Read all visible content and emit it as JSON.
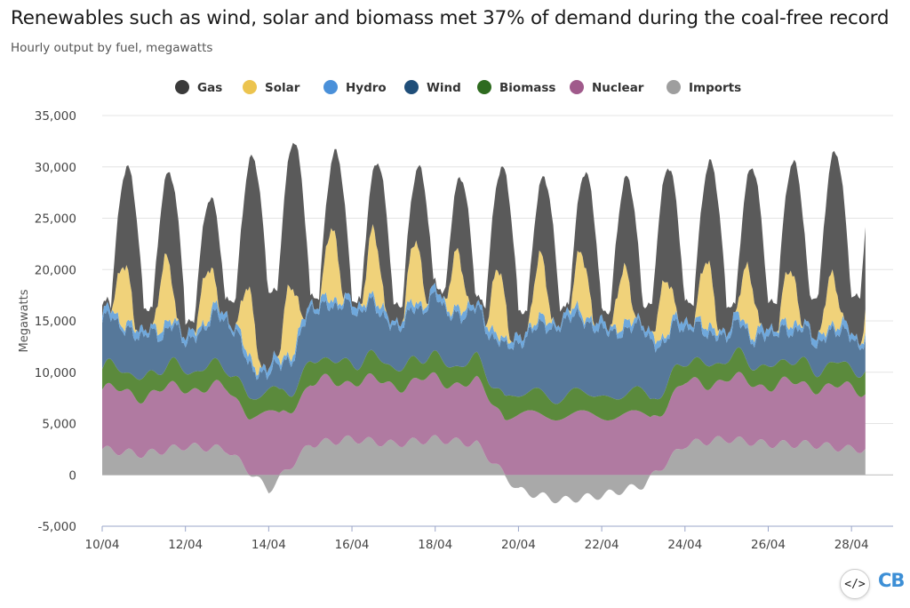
{
  "chart_data": {
    "type": "area",
    "stacked": true,
    "title": "Renewables such as wind, solar and biomass met 37% of demand during the coal-free record",
    "subtitle": "Hourly output by fuel, megawatts",
    "ylabel": "Megawatts",
    "xlabel": "",
    "ylim": [
      -5000,
      35000
    ],
    "yticks": [
      -5000,
      0,
      5000,
      10000,
      15000,
      20000,
      25000,
      30000,
      35000
    ],
    "ytick_labels": [
      "-5,000",
      "0",
      "5,000",
      "10,000",
      "15,000",
      "20,000",
      "25,000",
      "30,000",
      "35,000"
    ],
    "xlim_days": [
      "10/04",
      "28/04"
    ],
    "xtick_labels": [
      "10/04",
      "12/04",
      "14/04",
      "16/04",
      "18/04",
      "20/04",
      "22/04",
      "24/04",
      "26/04",
      "28/04"
    ],
    "xtick_days": [
      10,
      12,
      14,
      16,
      18,
      20,
      22,
      24,
      26,
      28
    ],
    "x_end_day": 28.35,
    "grid": "horizontal",
    "legend_position": "top",
    "stack_order_bottom_to_top": [
      "Imports",
      "Nuclear",
      "Biomass",
      "Wind",
      "Hydro",
      "Solar",
      "Gas"
    ],
    "series": [
      {
        "name": "Gas",
        "color": "#5a5a5a",
        "total_daily_peak": [
          30000,
          29500,
          27000,
          31000,
          32500,
          31500,
          30500,
          30000,
          29000,
          30000,
          29000,
          29500,
          29000,
          30000,
          30500,
          30000,
          30500,
          31500
        ]
      },
      {
        "name": "Solar",
        "color": "#f0d27a",
        "daily_peak": [
          6000,
          6500,
          5000,
          6500,
          7000,
          7000,
          6500,
          6000,
          5500,
          6500,
          6000,
          6000,
          5500,
          5500,
          6500,
          6000,
          5500,
          5000
        ]
      },
      {
        "name": "Hydro",
        "color": "#6fa8dc",
        "approx": 600
      },
      {
        "name": "Wind",
        "color": "#56789a",
        "daily_level": [
          4500,
          4000,
          3000,
          5000,
          1500,
          5000,
          5500,
          4000,
          5500,
          4500,
          5000,
          7500,
          6500,
          6000,
          3500,
          2500,
          3000,
          3000,
          3000
        ]
      },
      {
        "name": "Biomass",
        "color": "#5b8a3c",
        "approx": 2000
      },
      {
        "name": "Nuclear",
        "color": "#b07aa1",
        "approx": 5800
      },
      {
        "name": "Imports",
        "color": "#a9a9a9",
        "daily_level": [
          2500,
          2000,
          2800,
          2500,
          -1500,
          3000,
          3500,
          3000,
          3500,
          3000,
          -1500,
          -2500,
          -2000,
          -1000,
          3000,
          3500,
          3000,
          3000,
          2500
        ]
      }
    ]
  },
  "legend": [
    {
      "label": "Gas",
      "color": "#3a3a3a"
    },
    {
      "label": "Solar",
      "color": "#ecc44f"
    },
    {
      "label": "Hydro",
      "color": "#4a90d9"
    },
    {
      "label": "Wind",
      "color": "#1f4e79"
    },
    {
      "label": "Biomass",
      "color": "#2e6b1f"
    },
    {
      "label": "Nuclear",
      "color": "#a05a8b"
    },
    {
      "label": "Imports",
      "color": "#9e9e9e"
    }
  ],
  "embed_icon": "code-embed-icon",
  "logo_text": "CB"
}
